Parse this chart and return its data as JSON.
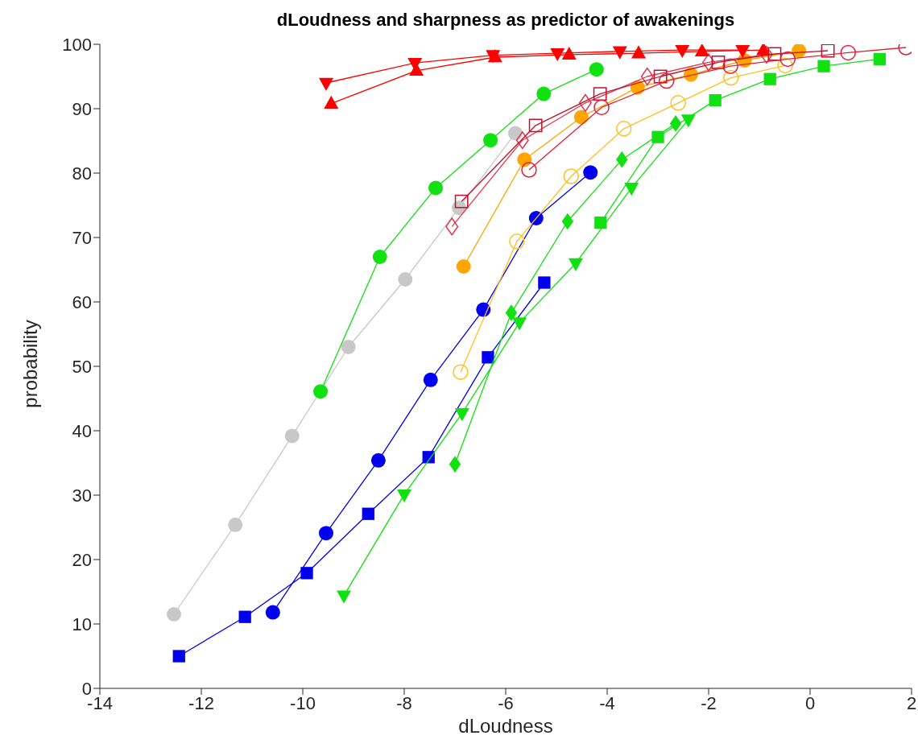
{
  "chart_data": {
    "type": "line",
    "title": "dLoudness and sharpness as predictor of awakenings",
    "xlabel": "dLoudness",
    "ylabel": "probability",
    "xlim": [
      -14,
      2
    ],
    "xticks": [
      -14,
      -12,
      -10,
      -8,
      -6,
      -4,
      -2,
      0,
      2
    ],
    "ylim": [
      0,
      100
    ],
    "yticks": [
      0,
      10,
      20,
      30,
      40,
      50,
      60,
      70,
      80,
      90,
      100
    ],
    "grid": false,
    "legend": false,
    "line_style": "solid",
    "series": [
      {
        "color": "#c8c8c8",
        "marker": "circle",
        "x": [
          -12.54,
          -11.33,
          -10.21,
          -9.1,
          -7.98,
          -6.92,
          -5.81
        ],
        "values": [
          11.5,
          25.4,
          39.2,
          53.0,
          63.5,
          74.6,
          86.2
        ]
      },
      {
        "color": "#11e011",
        "marker": "circle",
        "x": [
          -9.65,
          -8.48,
          -7.38,
          -6.3,
          -5.25,
          -4.21
        ],
        "values": [
          46.1,
          67.0,
          77.7,
          85.1,
          92.3,
          96.1
        ]
      },
      {
        "color": "#0000ee",
        "marker": "circle",
        "x": [
          -10.59,
          -9.54,
          -8.51,
          -7.48,
          -6.44,
          -5.4,
          -4.33
        ],
        "values": [
          11.8,
          24.1,
          35.4,
          47.9,
          58.8,
          73.0,
          80.1
        ]
      },
      {
        "color": "#0000ee",
        "marker": "square",
        "x": [
          -12.44,
          -11.14,
          -9.92,
          -8.71,
          -7.52,
          -6.35,
          -5.24
        ],
        "values": [
          5.0,
          11.1,
          17.9,
          27.1,
          35.9,
          51.4,
          63.0
        ]
      },
      {
        "color": "#11e011",
        "marker": "triangle-down",
        "x": [
          -9.19,
          -8.0,
          -6.86,
          -5.73,
          -4.62,
          -3.52,
          -2.4
        ],
        "values": [
          14.4,
          30.1,
          42.7,
          56.8,
          66.0,
          77.7,
          88.3
        ]
      },
      {
        "color": "#11e011",
        "marker": "diamond",
        "x": [
          -7.0,
          -5.89,
          -4.78,
          -3.71,
          -2.65
        ],
        "values": [
          34.8,
          58.3,
          72.5,
          82.1,
          87.7
        ]
      },
      {
        "color": "#11e011",
        "marker": "square",
        "x": [
          -4.13,
          -3.0,
          -1.87,
          -0.79,
          0.27,
          1.37
        ],
        "values": [
          72.3,
          85.6,
          91.3,
          94.6,
          96.6,
          97.7
        ]
      },
      {
        "color": "#ffa500",
        "marker": "circle",
        "x": [
          -6.83,
          -5.63,
          -4.51,
          -3.4,
          -2.35,
          -1.29,
          -0.22
        ],
        "values": [
          65.5,
          82.1,
          88.7,
          93.3,
          95.3,
          97.5,
          99.0
        ]
      },
      {
        "color": "#ffc020",
        "marker": "circle-open",
        "x": [
          -6.89,
          -5.78,
          -4.71,
          -3.67,
          -2.6,
          -1.56,
          -0.49
        ],
        "values": [
          49.1,
          69.4,
          79.5,
          86.9,
          90.9,
          94.8,
          96.7
        ]
      },
      {
        "color": "#e8334d",
        "marker": "diamond-open",
        "x": [
          -7.06,
          -5.67,
          -4.43,
          -3.21,
          -2.0,
          -0.86
        ],
        "values": [
          71.7,
          85.1,
          90.9,
          95.0,
          97.2,
          98.4
        ]
      },
      {
        "color": "#c0102a",
        "marker": "square-open",
        "x": [
          -6.87,
          -5.41,
          -4.14,
          -2.95,
          -1.81,
          -0.7,
          0.35
        ],
        "values": [
          75.6,
          87.4,
          92.3,
          95.0,
          97.2,
          98.5,
          99.0
        ]
      },
      {
        "color": "#e0203a",
        "marker": "circle-open",
        "x": [
          -5.54,
          -4.11,
          -2.83,
          -1.57,
          -0.44,
          0.75,
          1.89
        ],
        "values": [
          80.5,
          90.2,
          94.3,
          96.6,
          97.7,
          98.7,
          99.5
        ]
      },
      {
        "color": "#ff0000",
        "marker": "triangle-down",
        "x": [
          -9.54,
          -7.79,
          -6.25,
          -4.98,
          -3.75,
          -2.52,
          -1.33
        ],
        "values": [
          94.0,
          97.1,
          98.3,
          98.6,
          98.9,
          99.1,
          99.1
        ]
      },
      {
        "color": "#ff0000",
        "marker": "triangle",
        "x": [
          -9.44,
          -7.76,
          -6.21,
          -4.75,
          -3.38,
          -2.13,
          -0.92
        ],
        "values": [
          90.8,
          95.9,
          98.0,
          98.4,
          98.6,
          98.9,
          99.1
        ]
      }
    ]
  }
}
